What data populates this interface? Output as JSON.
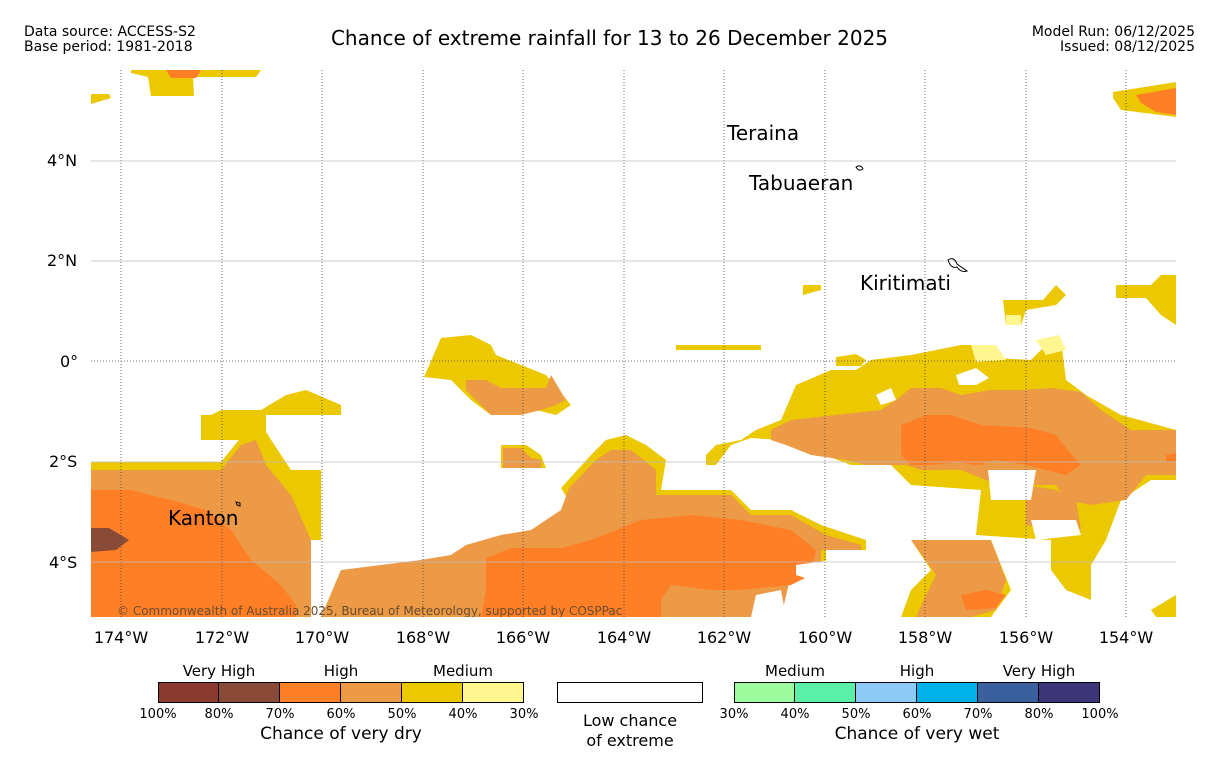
{
  "header": {
    "data_source": "Data source: ACCESS-S2",
    "base_period": "Base period: 1981-2018",
    "title": "Chance of extreme rainfall for 13 to 26 December 2025",
    "model_run": "Model Run: 06/12/2025",
    "issued": "Issued: 08/12/2025"
  },
  "map": {
    "lon_labels": [
      "174°W",
      "172°W",
      "170°W",
      "168°W",
      "166°W",
      "164°W",
      "162°W",
      "160°W",
      "158°W",
      "156°W",
      "154°W"
    ],
    "lat_labels": [
      "4°N",
      "2°N",
      "0°",
      "2°S",
      "4°S"
    ],
    "places": [
      "Teraina",
      "Tabuaeran",
      "Kiritimati",
      "Kanton"
    ],
    "copyright": "© Commonwealth of Australia 2025, Bureau of Meteorology, supported by COSPPac"
  },
  "legend": {
    "dry": {
      "group_labels": [
        "Very High",
        "High",
        "Medium"
      ],
      "ticks": [
        "100%",
        "80%",
        "70%",
        "60%",
        "50%",
        "40%",
        "30%"
      ],
      "colors": [
        "#8b3a2f",
        "#8a4a38",
        "#ff7f27",
        "#ec9a45",
        "#ecc800",
        "#fff68f"
      ],
      "caption": "Chance of very dry"
    },
    "low": {
      "line1": "Low chance",
      "line2": "of extreme"
    },
    "wet": {
      "group_labels": [
        "Medium",
        "High",
        "Very High"
      ],
      "ticks": [
        "30%",
        "40%",
        "50%",
        "60%",
        "70%",
        "80%",
        "100%"
      ],
      "colors": [
        "#9cfb9c",
        "#5af0a8",
        "#8dcaf5",
        "#00b2e9",
        "#3a60a0",
        "#3c3578"
      ],
      "caption": "Chance of very wet"
    }
  }
}
